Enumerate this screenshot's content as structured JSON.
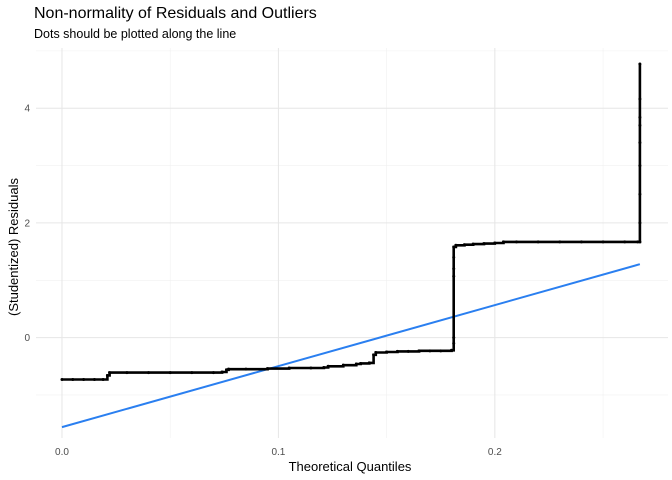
{
  "chart_data": {
    "type": "scatter",
    "title": "Non-normality of Residuals and Outliers",
    "subtitle": "Dots should be plotted along the line",
    "xlabel": "Theoretical Quantiles",
    "ylabel": "(Studentized) Residuals",
    "xlim": [
      -0.012,
      0.28
    ],
    "ylim": [
      -1.75,
      5.05
    ],
    "x_ticks": [
      0.0,
      0.1,
      0.2
    ],
    "x_tick_labels": [
      "0.0",
      "0.1",
      "0.2"
    ],
    "y_ticks": [
      0,
      2,
      4
    ],
    "y_tick_labels": [
      "0",
      "2",
      "4"
    ],
    "grid": true,
    "legend": "none",
    "series": [
      {
        "type": "points",
        "color": "#000000",
        "x": [
          0.0,
          0.005,
          0.01,
          0.015,
          0.019,
          0.021,
          0.022,
          0.03,
          0.04,
          0.05,
          0.06,
          0.07,
          0.074,
          0.076,
          0.077,
          0.085,
          0.095,
          0.105,
          0.115,
          0.121,
          0.123,
          0.13,
          0.136,
          0.138,
          0.142,
          0.144,
          0.145,
          0.15,
          0.155,
          0.16,
          0.165,
          0.17,
          0.175,
          0.18,
          0.181,
          0.181,
          0.181,
          0.181,
          0.181,
          0.181,
          0.182,
          0.186,
          0.19,
          0.195,
          0.2,
          0.204,
          0.21,
          0.22,
          0.23,
          0.24,
          0.25,
          0.26,
          0.266,
          0.267,
          0.267,
          0.267,
          0.267,
          0.267,
          0.267,
          0.267,
          0.267,
          0.267
        ],
        "y": [
          -0.73,
          -0.73,
          -0.73,
          -0.73,
          -0.73,
          -0.66,
          -0.61,
          -0.61,
          -0.61,
          -0.61,
          -0.61,
          -0.61,
          -0.6,
          -0.56,
          -0.55,
          -0.55,
          -0.54,
          -0.53,
          -0.53,
          -0.52,
          -0.5,
          -0.48,
          -0.46,
          -0.45,
          -0.44,
          -0.3,
          -0.26,
          -0.25,
          -0.24,
          -0.24,
          -0.23,
          -0.23,
          -0.23,
          -0.22,
          -0.1,
          0.0,
          1.07,
          1.2,
          1.4,
          1.58,
          1.61,
          1.62,
          1.63,
          1.64,
          1.65,
          1.67,
          1.67,
          1.67,
          1.67,
          1.67,
          1.67,
          1.67,
          1.67,
          1.67,
          2.0,
          2.5,
          3.0,
          3.4,
          3.7,
          3.84,
          4.16,
          4.77
        ]
      },
      {
        "type": "line",
        "color": "#2a7ff0",
        "x": [
          0.0,
          0.267
        ],
        "y": [
          -1.56,
          1.28
        ]
      }
    ]
  }
}
